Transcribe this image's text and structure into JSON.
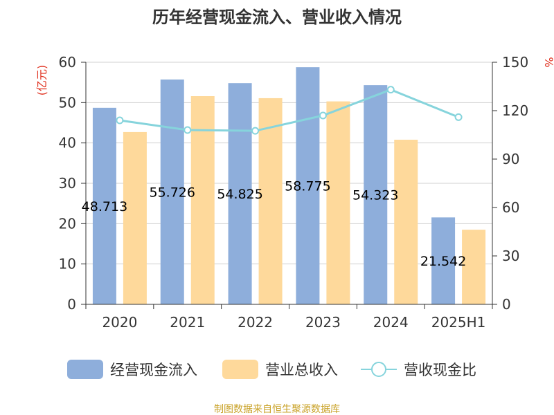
{
  "chart_data": {
    "type": "bar",
    "title": "历年经营现金流入、营业收入情况",
    "categories": [
      "2020",
      "2021",
      "2022",
      "2023",
      "2024",
      "2025H1"
    ],
    "y_left": {
      "unit_label": "(亿元)",
      "range": [
        0,
        60
      ],
      "ticks": [
        "0",
        "10",
        "20",
        "30",
        "40",
        "50",
        "60"
      ]
    },
    "y_right": {
      "unit_label": "%",
      "range": [
        0,
        150
      ],
      "ticks": [
        "0",
        "30",
        "60",
        "90",
        "120",
        "150"
      ]
    },
    "series": [
      {
        "name": "经营现金流入",
        "kind": "bar",
        "axis": "left",
        "color": "#8eaedb",
        "values": [
          48.713,
          55.726,
          54.825,
          58.775,
          54.323,
          21.542
        ],
        "labels": [
          "48.713",
          "55.726",
          "54.825",
          "58.775",
          "54.323",
          "21.542"
        ]
      },
      {
        "name": "营业总收入",
        "kind": "bar",
        "axis": "left",
        "color": "#fed99b",
        "values": [
          42.7,
          51.6,
          51.1,
          50.3,
          40.8,
          18.5
        ]
      },
      {
        "name": "营收现金比",
        "kind": "line",
        "axis": "right",
        "color": "#86d4dc",
        "values": [
          114,
          108,
          107.5,
          117,
          133,
          116
        ]
      }
    ],
    "grid": true,
    "legend_position": "bottom"
  },
  "source": "制图数据来自恒生聚源数据库"
}
